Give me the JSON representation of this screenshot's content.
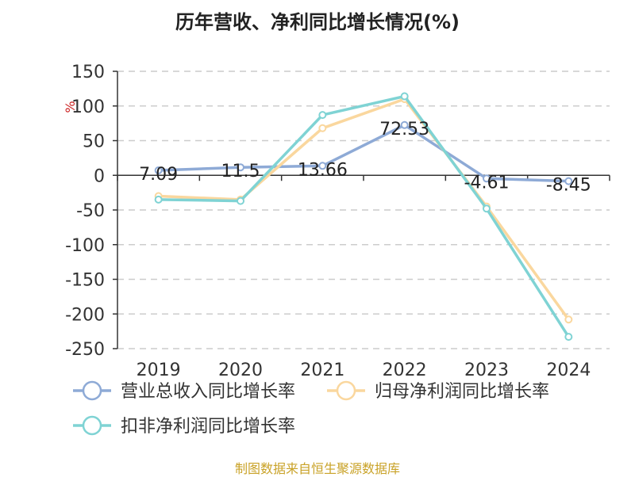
{
  "chart_data": {
    "type": "line",
    "title": "历年营收、净利同比增长情况(%)",
    "ylabel": "%",
    "categories": [
      "2019",
      "2020",
      "2021",
      "2022",
      "2023",
      "2024"
    ],
    "ylim": [
      -250,
      150
    ],
    "yticks": [
      150,
      100,
      50,
      0,
      -50,
      -100,
      -150,
      -200,
      -250
    ],
    "grid": true,
    "legend_position": "bottom-left",
    "series": [
      {
        "name": "营业总收入同比增长率",
        "color": "#8eaad6",
        "values": [
          7.09,
          11.5,
          13.66,
          72.53,
          -4.61,
          -8.45
        ],
        "data_labels": [
          "7.09",
          "11.5",
          "13.66",
          "72.53",
          "-4.61",
          "-8.45"
        ]
      },
      {
        "name": "归母净利润同比增长率",
        "color": "#fad79e",
        "values": [
          -30,
          -35,
          68,
          110,
          -45,
          -208
        ]
      },
      {
        "name": "扣非净利润同比增长率",
        "color": "#7fd3d4",
        "values": [
          -35,
          -37,
          87,
          114,
          -48,
          -233
        ]
      }
    ]
  },
  "footer": "制图数据来自恒生聚源数据库"
}
